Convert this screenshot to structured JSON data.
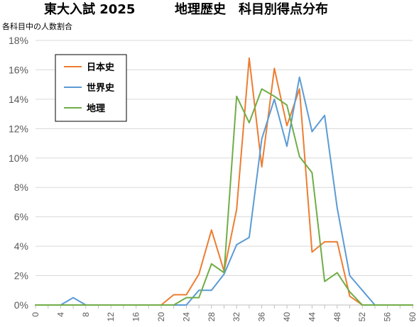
{
  "title_left": "東大入試 2025",
  "title_right": "地理歴史　科目別得点分布",
  "chart_data": {
    "type": "line",
    "title": "東大入試 2025　地理歴史　科目別得点分布",
    "ylabel": "各科目中の人数割合",
    "xlabel": "",
    "x": [
      0,
      2,
      4,
      6,
      8,
      10,
      12,
      14,
      16,
      18,
      20,
      22,
      24,
      26,
      28,
      30,
      32,
      34,
      36,
      38,
      40,
      42,
      44,
      46,
      48,
      50,
      52,
      54,
      56,
      58,
      60
    ],
    "x_ticks": [
      "0",
      "4",
      "8",
      "12",
      "16",
      "20",
      "24",
      "28",
      "32",
      "36",
      "40",
      "44",
      "48",
      "52",
      "56",
      "60"
    ],
    "xlim": [
      0,
      60
    ],
    "ylim": [
      0,
      18
    ],
    "y_ticks": [
      "0%",
      "2%",
      "4%",
      "6%",
      "8%",
      "10%",
      "12%",
      "14%",
      "16%",
      "18%"
    ],
    "y_tick_values": [
      0,
      2,
      4,
      6,
      8,
      10,
      12,
      14,
      16,
      18
    ],
    "grid": "horizontal",
    "legend_position": "top-left",
    "series": [
      {
        "name": "日本史",
        "color": "#ed7d31",
        "values": [
          0,
          0,
          0,
          0,
          0,
          0,
          0,
          0,
          0,
          0,
          0,
          0.7,
          0.7,
          2.1,
          5.1,
          2.3,
          6.5,
          16.8,
          9.4,
          16.1,
          12.2,
          14.7,
          3.6,
          4.3,
          4.3,
          0.6,
          0,
          0,
          0,
          0,
          0
        ]
      },
      {
        "name": "世界史",
        "color": "#5b9bd5",
        "values": [
          0,
          0,
          0,
          0.5,
          0,
          0,
          0,
          0,
          0,
          0,
          0,
          0,
          0,
          1.0,
          1.0,
          2.1,
          4.1,
          4.6,
          11.3,
          14.0,
          10.8,
          15.5,
          11.8,
          12.9,
          6.6,
          2.0,
          1.0,
          0,
          0,
          0,
          0
        ]
      },
      {
        "name": "地理",
        "color": "#70ad47",
        "values": [
          0,
          0,
          0,
          0,
          0,
          0,
          0,
          0,
          0,
          0,
          0,
          0,
          0.5,
          0.5,
          2.8,
          2.2,
          14.2,
          12.4,
          14.7,
          14.2,
          13.6,
          10.1,
          9.0,
          1.6,
          2.2,
          0.9,
          0,
          0,
          0,
          0,
          0
        ]
      }
    ]
  }
}
